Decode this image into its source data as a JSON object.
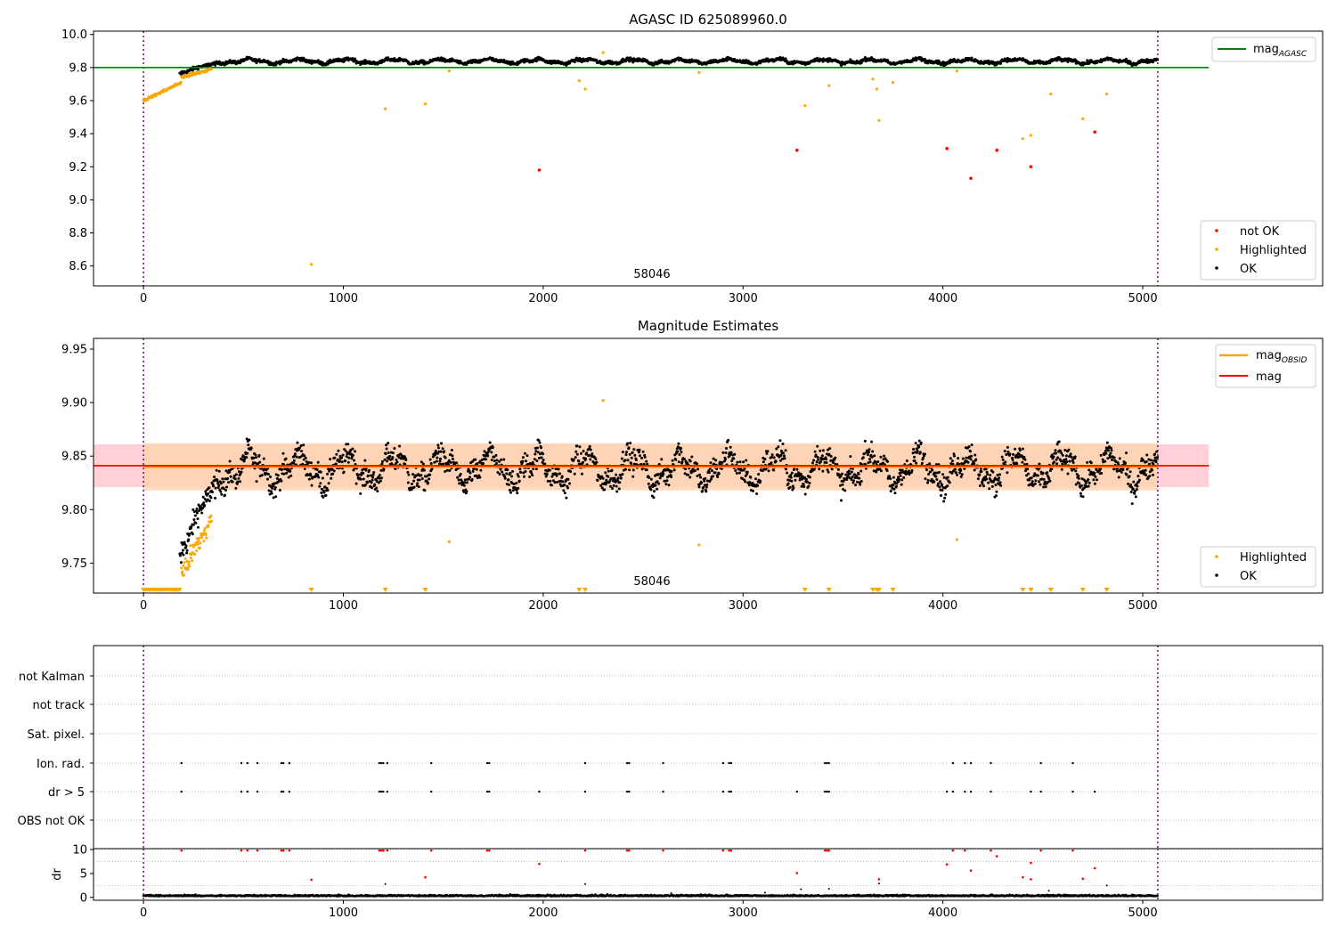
{
  "colors": {
    "ok": "#000000",
    "highlighted": "#ffa500",
    "not_ok": "#ff0000",
    "agasc_line": "#008000",
    "mag_line": "#ff0000",
    "obsid_line": "#ffa500",
    "band_red": "#ffc0cb",
    "band_orange": "#ffd3b0",
    "boundary": "#800080",
    "grid": "#b0b0b0"
  },
  "chart_data": [
    {
      "type": "scatter",
      "title": "AGASC ID 625089960.0",
      "xlim": [
        -250,
        5900
      ],
      "ylim": [
        8.48,
        10.02
      ],
      "xticks": [
        0,
        1000,
        2000,
        3000,
        4000,
        5000
      ],
      "yticks": [
        8.6,
        8.8,
        9.0,
        9.2,
        9.4,
        9.6,
        9.8,
        10.0
      ],
      "ytick_labels": [
        "8.6",
        "8.8",
        "9.0",
        "9.2",
        "9.4",
        "9.6",
        "9.8",
        "10.0"
      ],
      "annotation": "58046",
      "hline": {
        "name": "mag",
        "subscript": "AGASC",
        "y": 9.8,
        "x_range": [
          -250,
          5330
        ]
      },
      "vlines": [
        0,
        5075
      ],
      "legend_top": "top-right",
      "legend_bottom": [
        "not OK",
        "Highlighted",
        "OK"
      ],
      "not_ok_points": [
        [
          1980,
          9.18
        ],
        [
          3270,
          9.3
        ],
        [
          4020,
          9.31
        ],
        [
          4140,
          9.13
        ],
        [
          4270,
          9.3
        ],
        [
          4440,
          9.2
        ],
        [
          4760,
          9.41
        ]
      ],
      "highlighted_points": [
        [
          840,
          8.61
        ],
        [
          1210,
          9.55
        ],
        [
          1410,
          9.58
        ],
        [
          1530,
          9.78
        ],
        [
          2180,
          9.72
        ],
        [
          2210,
          9.67
        ],
        [
          2300,
          9.89
        ],
        [
          2780,
          9.77
        ],
        [
          3310,
          9.57
        ],
        [
          3430,
          9.69
        ],
        [
          3650,
          9.73
        ],
        [
          3670,
          9.67
        ],
        [
          3680,
          9.48
        ],
        [
          3750,
          9.71
        ],
        [
          4070,
          9.78
        ],
        [
          4400,
          9.37
        ],
        [
          4440,
          9.39
        ],
        [
          4540,
          9.64
        ],
        [
          4700,
          9.49
        ],
        [
          4820,
          9.64
        ]
      ]
    },
    {
      "type": "scatter",
      "title": "Magnitude Estimates",
      "xlim": [
        -250,
        5900
      ],
      "ylim": [
        9.722,
        9.96
      ],
      "xticks": [
        0,
        1000,
        2000,
        3000,
        4000,
        5000
      ],
      "yticks": [
        9.75,
        9.8,
        9.85,
        9.9,
        9.95
      ],
      "ytick_labels": [
        "9.75",
        "9.80",
        "9.85",
        "9.90",
        "9.95"
      ],
      "annotation": "58046",
      "mag_line": {
        "name": "mag",
        "y": 9.841,
        "band": [
          9.821,
          9.861
        ],
        "x_range": [
          -250,
          5330
        ]
      },
      "obsid_line": {
        "name": "mag",
        "subscript": "OBSID",
        "y": 9.84,
        "band": [
          9.818,
          9.862
        ],
        "x_range": [
          0,
          5075
        ]
      },
      "vlines": [
        0,
        5075
      ],
      "legend_top": [
        "mag_OBSID",
        "mag"
      ],
      "legend_bottom": [
        "Highlighted",
        "OK"
      ],
      "highlighted_points": [
        [
          1530,
          9.77
        ],
        [
          2300,
          9.902
        ],
        [
          2780,
          9.767
        ],
        [
          4070,
          9.772
        ]
      ],
      "lower_markers": [
        0,
        10,
        20,
        30,
        40,
        50,
        60,
        70,
        80,
        90,
        100,
        110,
        120,
        130,
        140,
        150,
        160,
        170,
        180,
        840,
        1210,
        1410,
        2180,
        2210,
        3310,
        3430,
        3650,
        3670,
        3680,
        3750,
        4400,
        4440,
        4540,
        4700,
        4820
      ]
    },
    {
      "type": "scatter",
      "title": "",
      "xlim": [
        -250,
        5900
      ],
      "vlines": [
        0,
        5075
      ],
      "categories": [
        "not Kalman",
        "not track",
        "Sat. pixel.",
        "Ion. rad.",
        "dr > 5",
        "OBS not OK"
      ],
      "ion_rad_x": [
        190,
        490,
        520,
        570,
        690,
        700,
        730,
        1180,
        1190,
        1200,
        1220,
        1440,
        1720,
        1730,
        2210,
        2420,
        2430,
        2600,
        2900,
        2930,
        2940,
        3410,
        3420,
        3430,
        4050,
        4110,
        4140,
        4240,
        4490,
        4650
      ],
      "dr_gt5_x": [
        190,
        490,
        520,
        570,
        690,
        700,
        730,
        1180,
        1190,
        1200,
        1220,
        1440,
        1720,
        1730,
        1980,
        2210,
        2420,
        2430,
        2600,
        2900,
        2930,
        2940,
        3270,
        3410,
        3420,
        3430,
        4020,
        4050,
        4110,
        4140,
        4240,
        4440,
        4490,
        4650,
        4760
      ]
    },
    {
      "type": "scatter",
      "xlim": [
        -250,
        5900
      ],
      "ylim": [
        -0.6,
        10.2
      ],
      "ylabel": "dr",
      "yticks": [
        0,
        5,
        10
      ],
      "ytick_labels": [
        "0",
        "5",
        "10"
      ],
      "xticks": [
        0,
        1000,
        2000,
        3000,
        4000,
        5000
      ],
      "vlines": [
        0,
        5075
      ],
      "red_points": [
        [
          190,
          9.8
        ],
        [
          490,
          9.8
        ],
        [
          520,
          9.8
        ],
        [
          570,
          9.8
        ],
        [
          690,
          9.8
        ],
        [
          700,
          9.8
        ],
        [
          730,
          9.8
        ],
        [
          840,
          3.7
        ],
        [
          1180,
          9.8
        ],
        [
          1190,
          9.8
        ],
        [
          1200,
          9.8
        ],
        [
          1220,
          9.8
        ],
        [
          1410,
          4.2
        ],
        [
          1440,
          9.8
        ],
        [
          1720,
          9.8
        ],
        [
          1730,
          9.8
        ],
        [
          1980,
          7.0
        ],
        [
          2210,
          9.8
        ],
        [
          2420,
          9.8
        ],
        [
          2430,
          9.8
        ],
        [
          2600,
          9.8
        ],
        [
          2900,
          9.8
        ],
        [
          2930,
          9.8
        ],
        [
          2940,
          9.8
        ],
        [
          3270,
          5.1
        ],
        [
          3410,
          9.8
        ],
        [
          3420,
          9.8
        ],
        [
          3430,
          9.8
        ],
        [
          3680,
          3.8
        ],
        [
          4020,
          6.9
        ],
        [
          4050,
          9.8
        ],
        [
          4110,
          9.8
        ],
        [
          4140,
          5.6
        ],
        [
          4240,
          9.8
        ],
        [
          4270,
          8.6
        ],
        [
          4400,
          4.2
        ],
        [
          4440,
          7.2
        ],
        [
          4440,
          3.8
        ],
        [
          4490,
          9.8
        ],
        [
          4650,
          9.8
        ],
        [
          4700,
          3.9
        ],
        [
          4760,
          6.1
        ]
      ],
      "black_outliers": [
        [
          1210,
          2.8
        ],
        [
          2210,
          2.8
        ],
        [
          3290,
          1.7
        ],
        [
          3430,
          1.8
        ],
        [
          3680,
          2.9
        ],
        [
          4530,
          1.4
        ],
        [
          4820,
          2.5
        ],
        [
          2640,
          0.9
        ],
        [
          3110,
          1.0
        ]
      ]
    }
  ]
}
